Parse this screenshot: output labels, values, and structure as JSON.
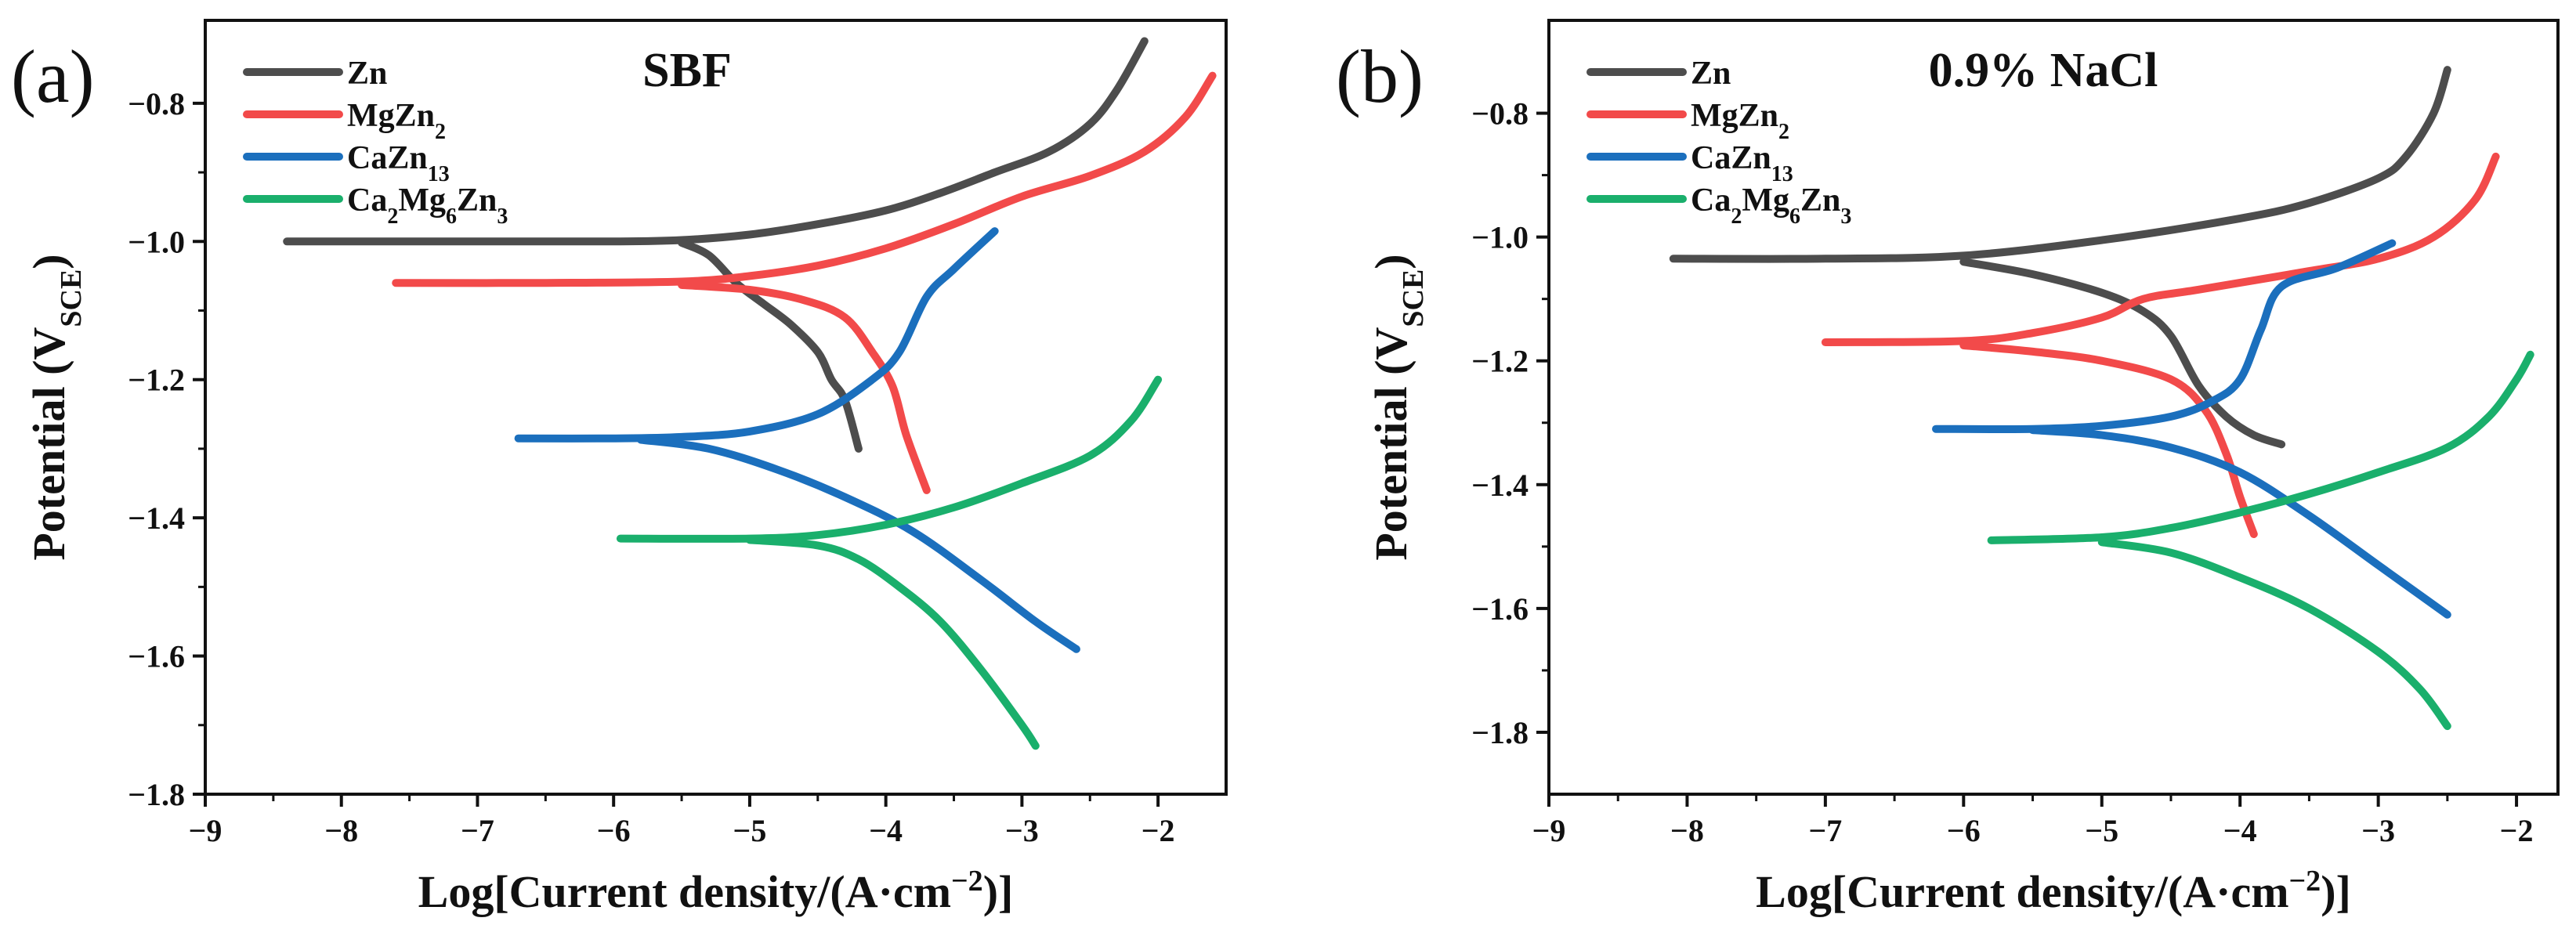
{
  "figure": {
    "x_ticks": [
      "−9",
      "−8",
      "−7",
      "−6",
      "−5",
      "−4",
      "−3",
      "−2"
    ],
    "xlabel": {
      "main": "Log[Current density/(A·cm",
      "sup": "−2",
      "tail": ")]"
    },
    "ylabel": {
      "main": "Potential (V",
      "sub": "SCE",
      "tail": ")"
    },
    "legend_labels": [
      {
        "parts": [
          [
            "Zn",
            ""
          ]
        ]
      },
      {
        "parts": [
          [
            "MgZn",
            ""
          ],
          [
            "2",
            "sub"
          ]
        ]
      },
      {
        "parts": [
          [
            "CaZn",
            ""
          ],
          [
            "13",
            "sub"
          ]
        ]
      },
      {
        "parts": [
          [
            "Ca",
            ""
          ],
          [
            "2",
            "sub"
          ],
          [
            "Mg",
            ""
          ],
          [
            "6",
            "sub"
          ],
          [
            "Zn",
            ""
          ],
          [
            "3",
            "sub"
          ]
        ]
      }
    ]
  },
  "chart_data": [
    {
      "type": "line",
      "panel": "(a)",
      "title": "SBF",
      "xlabel": "Log[Current density/(A·cm−2)]",
      "ylabel": "Potential (VSCE)",
      "xlim": [
        -9,
        -1.5
      ],
      "ylim": [
        -1.8,
        -0.68
      ],
      "x_ticks": [
        -9,
        -8,
        -7,
        -6,
        -5,
        -4,
        -3,
        -2
      ],
      "y_ticks": [
        -0.8,
        -1.0,
        -1.2,
        -1.4,
        -1.6,
        -1.8
      ],
      "y_tick_labels": [
        "−0.8",
        "−1.0",
        "−1.2",
        "−1.4",
        "−1.6",
        "−1.8"
      ],
      "legend_position": "top-left",
      "series": [
        {
          "name": "Zn",
          "color": "#4d4d4d",
          "anodic": [
            [
              -8.4,
              -1.0
            ],
            [
              -7.0,
              -1.0
            ],
            [
              -6.0,
              -1.0
            ],
            [
              -5.5,
              -0.998
            ],
            [
              -5.0,
              -0.99
            ],
            [
              -4.5,
              -0.975
            ],
            [
              -4.0,
              -0.955
            ],
            [
              -3.6,
              -0.93
            ],
            [
              -3.2,
              -0.9
            ],
            [
              -2.8,
              -0.87
            ],
            [
              -2.5,
              -0.83
            ],
            [
              -2.3,
              -0.78
            ],
            [
              -2.1,
              -0.71
            ]
          ],
          "cathodic": [
            [
              -5.5,
              -1.002
            ],
            [
              -5.3,
              -1.02
            ],
            [
              -5.1,
              -1.06
            ],
            [
              -4.9,
              -1.09
            ],
            [
              -4.7,
              -1.12
            ],
            [
              -4.5,
              -1.16
            ],
            [
              -4.4,
              -1.2
            ],
            [
              -4.3,
              -1.23
            ],
            [
              -4.2,
              -1.3
            ]
          ]
        },
        {
          "name": "MgZn2",
          "color": "#f24a4a",
          "anodic": [
            [
              -7.6,
              -1.06
            ],
            [
              -6.5,
              -1.06
            ],
            [
              -5.5,
              -1.058
            ],
            [
              -5.0,
              -1.05
            ],
            [
              -4.5,
              -1.035
            ],
            [
              -4.0,
              -1.01
            ],
            [
              -3.5,
              -0.975
            ],
            [
              -3.0,
              -0.935
            ],
            [
              -2.5,
              -0.905
            ],
            [
              -2.1,
              -0.87
            ],
            [
              -1.8,
              -0.82
            ],
            [
              -1.6,
              -0.76
            ]
          ],
          "cathodic": [
            [
              -5.5,
              -1.063
            ],
            [
              -5.0,
              -1.07
            ],
            [
              -4.6,
              -1.085
            ],
            [
              -4.3,
              -1.11
            ],
            [
              -4.1,
              -1.16
            ],
            [
              -3.95,
              -1.21
            ],
            [
              -3.85,
              -1.28
            ],
            [
              -3.7,
              -1.36
            ]
          ]
        },
        {
          "name": "CaZn13",
          "color": "#1b6fbd",
          "anodic": [
            [
              -6.7,
              -1.285
            ],
            [
              -6.0,
              -1.285
            ],
            [
              -5.5,
              -1.283
            ],
            [
              -5.0,
              -1.275
            ],
            [
              -4.5,
              -1.25
            ],
            [
              -4.1,
              -1.2
            ],
            [
              -3.9,
              -1.16
            ],
            [
              -3.7,
              -1.08
            ],
            [
              -3.5,
              -1.04
            ],
            [
              -3.2,
              -0.985
            ]
          ],
          "cathodic": [
            [
              -5.8,
              -1.287
            ],
            [
              -5.3,
              -1.3
            ],
            [
              -4.8,
              -1.33
            ],
            [
              -4.3,
              -1.37
            ],
            [
              -3.8,
              -1.42
            ],
            [
              -3.3,
              -1.49
            ],
            [
              -2.9,
              -1.55
            ],
            [
              -2.6,
              -1.59
            ]
          ]
        },
        {
          "name": "Ca2Mg6Zn3",
          "color": "#1aaf6c",
          "anodic": [
            [
              -5.95,
              -1.43
            ],
            [
              -5.0,
              -1.43
            ],
            [
              -4.5,
              -1.425
            ],
            [
              -4.0,
              -1.41
            ],
            [
              -3.5,
              -1.385
            ],
            [
              -3.0,
              -1.35
            ],
            [
              -2.5,
              -1.31
            ],
            [
              -2.2,
              -1.26
            ],
            [
              -2.0,
              -1.2
            ]
          ],
          "cathodic": [
            [
              -5.0,
              -1.432
            ],
            [
              -4.5,
              -1.44
            ],
            [
              -4.2,
              -1.46
            ],
            [
              -3.9,
              -1.5
            ],
            [
              -3.6,
              -1.55
            ],
            [
              -3.3,
              -1.62
            ],
            [
              -3.0,
              -1.7
            ],
            [
              -2.9,
              -1.73
            ]
          ]
        }
      ]
    },
    {
      "type": "line",
      "panel": "(b)",
      "title": "0.9% NaCl",
      "xlabel": "Log[Current density/(A·cm−2)]",
      "ylabel": "Potential (VSCE)",
      "xlim": [
        -9,
        -1.7
      ],
      "ylim": [
        -1.9,
        -0.65
      ],
      "x_ticks": [
        -9,
        -8,
        -7,
        -6,
        -5,
        -4,
        -3,
        -2
      ],
      "y_ticks": [
        -0.8,
        -1.0,
        -1.2,
        -1.4,
        -1.6,
        -1.8
      ],
      "y_tick_labels": [
        "−0.8",
        "−1.0",
        "−1.2",
        "−1.4",
        "−1.6",
        "−1.8"
      ],
      "legend_position": "top-left",
      "series": [
        {
          "name": "Zn",
          "color": "#4d4d4d",
          "anodic": [
            [
              -8.1,
              -1.035
            ],
            [
              -7.0,
              -1.035
            ],
            [
              -6.0,
              -1.03
            ],
            [
              -5.0,
              -1.005
            ],
            [
              -4.0,
              -0.97
            ],
            [
              -3.5,
              -0.945
            ],
            [
              -3.0,
              -0.905
            ],
            [
              -2.8,
              -0.87
            ],
            [
              -2.6,
              -0.8
            ],
            [
              -2.5,
              -0.73
            ]
          ],
          "cathodic": [
            [
              -6.0,
              -1.04
            ],
            [
              -5.5,
              -1.06
            ],
            [
              -5.0,
              -1.09
            ],
            [
              -4.7,
              -1.12
            ],
            [
              -4.5,
              -1.16
            ],
            [
              -4.3,
              -1.24
            ],
            [
              -4.1,
              -1.29
            ],
            [
              -3.9,
              -1.32
            ],
            [
              -3.7,
              -1.335
            ]
          ]
        },
        {
          "name": "MgZn2",
          "color": "#f24a4a",
          "anodic": [
            [
              -7.0,
              -1.17
            ],
            [
              -6.0,
              -1.168
            ],
            [
              -5.5,
              -1.155
            ],
            [
              -5.0,
              -1.13
            ],
            [
              -4.7,
              -1.1
            ],
            [
              -4.3,
              -1.085
            ],
            [
              -3.5,
              -1.055
            ],
            [
              -3.0,
              -1.035
            ],
            [
              -2.6,
              -1.0
            ],
            [
              -2.3,
              -0.94
            ],
            [
              -2.15,
              -0.87
            ]
          ],
          "cathodic": [
            [
              -6.0,
              -1.175
            ],
            [
              -5.5,
              -1.185
            ],
            [
              -5.0,
              -1.2
            ],
            [
              -4.5,
              -1.23
            ],
            [
              -4.25,
              -1.28
            ],
            [
              -4.1,
              -1.35
            ],
            [
              -4.0,
              -1.42
            ],
            [
              -3.9,
              -1.48
            ]
          ]
        },
        {
          "name": "CaZn13",
          "color": "#1b6fbd",
          "anodic": [
            [
              -6.2,
              -1.31
            ],
            [
              -5.5,
              -1.31
            ],
            [
              -5.0,
              -1.305
            ],
            [
              -4.5,
              -1.29
            ],
            [
              -4.2,
              -1.265
            ],
            [
              -4.0,
              -1.23
            ],
            [
              -3.85,
              -1.15
            ],
            [
              -3.7,
              -1.08
            ],
            [
              -3.3,
              -1.05
            ],
            [
              -2.9,
              -1.01
            ]
          ],
          "cathodic": [
            [
              -5.5,
              -1.312
            ],
            [
              -5.0,
              -1.32
            ],
            [
              -4.5,
              -1.34
            ],
            [
              -4.0,
              -1.38
            ],
            [
              -3.5,
              -1.45
            ],
            [
              -3.0,
              -1.53
            ],
            [
              -2.5,
              -1.61
            ]
          ]
        },
        {
          "name": "Ca2Mg6Zn3",
          "color": "#1aaf6c",
          "anodic": [
            [
              -5.8,
              -1.49
            ],
            [
              -5.0,
              -1.485
            ],
            [
              -4.5,
              -1.47
            ],
            [
              -4.0,
              -1.445
            ],
            [
              -3.5,
              -1.415
            ],
            [
              -3.0,
              -1.38
            ],
            [
              -2.5,
              -1.34
            ],
            [
              -2.2,
              -1.29
            ],
            [
              -2.0,
              -1.23
            ],
            [
              -1.9,
              -1.19
            ]
          ],
          "cathodic": [
            [
              -5.0,
              -1.493
            ],
            [
              -4.5,
              -1.51
            ],
            [
              -4.0,
              -1.55
            ],
            [
              -3.5,
              -1.6
            ],
            [
              -3.0,
              -1.67
            ],
            [
              -2.7,
              -1.73
            ],
            [
              -2.5,
              -1.79
            ]
          ]
        }
      ]
    }
  ]
}
